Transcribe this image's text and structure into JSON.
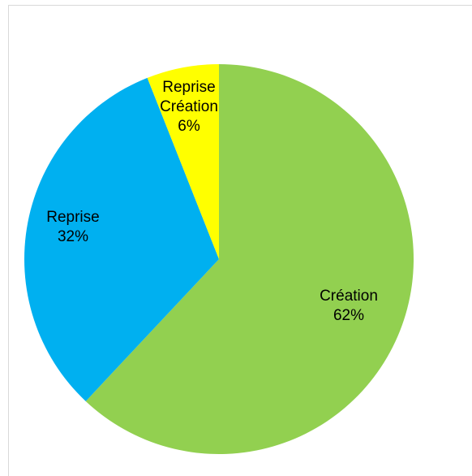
{
  "chart_data": {
    "type": "pie",
    "slices": [
      {
        "label": "Création",
        "value": 62,
        "display": "62%",
        "color": "#92d050"
      },
      {
        "label": "Reprise",
        "value": 32,
        "display": "32%",
        "color": "#00b0f0"
      },
      {
        "label": "Reprise Création",
        "value": 6,
        "display": "6%",
        "color": "#ffff00"
      }
    ],
    "start": "top",
    "direction": "clockwise",
    "legend": "none",
    "title": ""
  }
}
